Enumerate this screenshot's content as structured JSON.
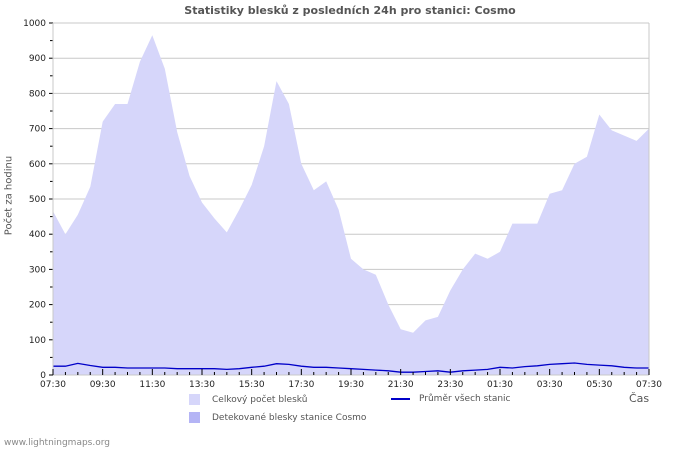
{
  "header": {
    "title": "Statistiky blesků z posledních 24h pro stanici: Cosmo"
  },
  "axes": {
    "ylabel": "Počet za hodinu",
    "xlabel": "Čas"
  },
  "legend": {
    "total": {
      "label": "Celkový počet blesků",
      "color": "#d6d6fa"
    },
    "detected": {
      "label": "Detekované blesky stanice Cosmo",
      "color": "#b4b4f5"
    },
    "average": {
      "label": "Průměr všech stanic",
      "color": "#0000c8"
    }
  },
  "footer": {
    "text": "www.lightningmaps.org"
  },
  "chart_data": {
    "type": "area",
    "title": "Statistiky blesků z posledních 24h pro stanici: Cosmo",
    "xlabel": "Čas",
    "ylabel": "Počet za hodinu",
    "ylim": [
      0,
      1000
    ],
    "yticks": [
      0,
      100,
      200,
      300,
      400,
      500,
      600,
      700,
      800,
      900,
      1000
    ],
    "xticks": [
      "07:30",
      "09:30",
      "11:30",
      "13:30",
      "15:30",
      "17:30",
      "19:30",
      "21:30",
      "23:30",
      "01:30",
      "03:30",
      "05:30",
      "07:30"
    ],
    "grid": true,
    "legend_position": "bottom",
    "x": [
      "07:30",
      "08:00",
      "08:30",
      "09:00",
      "09:30",
      "10:00",
      "10:30",
      "11:00",
      "11:30",
      "12:00",
      "12:30",
      "13:00",
      "13:30",
      "14:00",
      "14:30",
      "15:00",
      "15:30",
      "16:00",
      "16:30",
      "17:00",
      "17:30",
      "18:00",
      "18:30",
      "19:00",
      "19:30",
      "20:00",
      "20:30",
      "21:00",
      "21:30",
      "22:00",
      "22:30",
      "23:00",
      "23:30",
      "00:00",
      "00:30",
      "01:00",
      "01:30",
      "02:00",
      "02:30",
      "03:00",
      "03:30",
      "04:00",
      "04:30",
      "05:00",
      "05:30",
      "06:00",
      "06:30",
      "07:00",
      "07:30"
    ],
    "series": [
      {
        "name": "Celkový počet blesků",
        "type": "area",
        "values": [
          465,
          400,
          455,
          535,
          720,
          770,
          770,
          890,
          965,
          870,
          690,
          565,
          490,
          445,
          405,
          470,
          540,
          650,
          835,
          770,
          600,
          525,
          550,
          470,
          330,
          300,
          285,
          200,
          130,
          120,
          155,
          165,
          240,
          300,
          345,
          330,
          350,
          430,
          430,
          430,
          515,
          525,
          600,
          620,
          740,
          695,
          680,
          665,
          700
        ]
      },
      {
        "name": "Detekované blesky stanice Cosmo",
        "type": "area",
        "values": [
          0,
          0,
          0,
          0,
          0,
          0,
          0,
          0,
          0,
          0,
          0,
          0,
          0,
          0,
          0,
          0,
          0,
          0,
          0,
          0,
          0,
          0,
          0,
          0,
          0,
          0,
          0,
          0,
          0,
          0,
          0,
          0,
          0,
          0,
          0,
          0,
          0,
          0,
          0,
          0,
          0,
          0,
          0,
          0,
          0,
          0,
          0,
          0,
          0
        ]
      },
      {
        "name": "Průměr všech stanic",
        "type": "line",
        "values": [
          25,
          25,
          33,
          27,
          22,
          22,
          20,
          20,
          20,
          20,
          18,
          18,
          18,
          18,
          16,
          18,
          22,
          25,
          32,
          30,
          25,
          22,
          22,
          20,
          18,
          16,
          14,
          12,
          8,
          8,
          10,
          12,
          8,
          12,
          14,
          16,
          22,
          20,
          24,
          26,
          30,
          32,
          34,
          30,
          28,
          26,
          22,
          20,
          20
        ]
      }
    ]
  }
}
